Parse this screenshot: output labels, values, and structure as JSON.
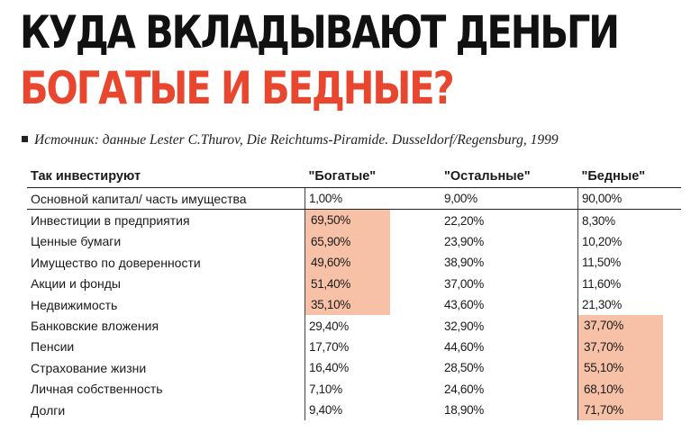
{
  "title_line1": "КУДА ВКЛАДЫВАЮТ ДЕНЬГИ",
  "title_line2": "БОГАТЫЕ И БЕДНЫЕ?",
  "source": "Источник: данные Lester C.Thurov, Die Reichtums-Piramide. Dusseldorf/Regensburg, 1999",
  "colors": {
    "accent": "#e8462e",
    "highlight": "#f7c1a8"
  },
  "table": {
    "headers": [
      "Так инвестируют",
      "\"Богатые\"",
      "\"Остальные\"",
      "\"Бедные\""
    ],
    "rows": [
      {
        "label": "Основной капитал/ часть имущества",
        "rich": "1,00%",
        "others": "9,00%",
        "poor": "90,00%",
        "highlight": ""
      },
      {
        "label": "Инвестиции в предприятия",
        "rich": "69,50%",
        "others": "22,20%",
        "poor": "8,30%",
        "highlight": "rich"
      },
      {
        "label": "Ценные бумаги",
        "rich": "65,90%",
        "others": "23,90%",
        "poor": "10,20%",
        "highlight": "rich"
      },
      {
        "label": "Имущество по доверенности",
        "rich": "49,60%",
        "others": "38,90%",
        "poor": "11,50%",
        "highlight": "rich"
      },
      {
        "label": "Акции и фонды",
        "rich": "51,40%",
        "others": "37,00%",
        "poor": "11,60%",
        "highlight": "rich"
      },
      {
        "label": "Недвижимость",
        "rich": "35,10%",
        "others": "43,60%",
        "poor": "21,30%",
        "highlight": "rich"
      },
      {
        "label": "Банковские вложения",
        "rich": "29,40%",
        "others": "32,90%",
        "poor": "37,70%",
        "highlight": "poor"
      },
      {
        "label": "Пенсии",
        "rich": "17,70%",
        "others": "44,60%",
        "poor": "37,70%",
        "highlight": "poor"
      },
      {
        "label": "Страхование жизни",
        "rich": "16,40%",
        "others": "28,50%",
        "poor": "55,10%",
        "highlight": "poor"
      },
      {
        "label": "Личная собственность",
        "rich": "7,10%",
        "others": "24,60%",
        "poor": "68,10%",
        "highlight": "poor"
      },
      {
        "label": "Долги",
        "rich": "9,40%",
        "others": "18,90%",
        "poor": "71,70%",
        "highlight": "poor"
      }
    ]
  }
}
